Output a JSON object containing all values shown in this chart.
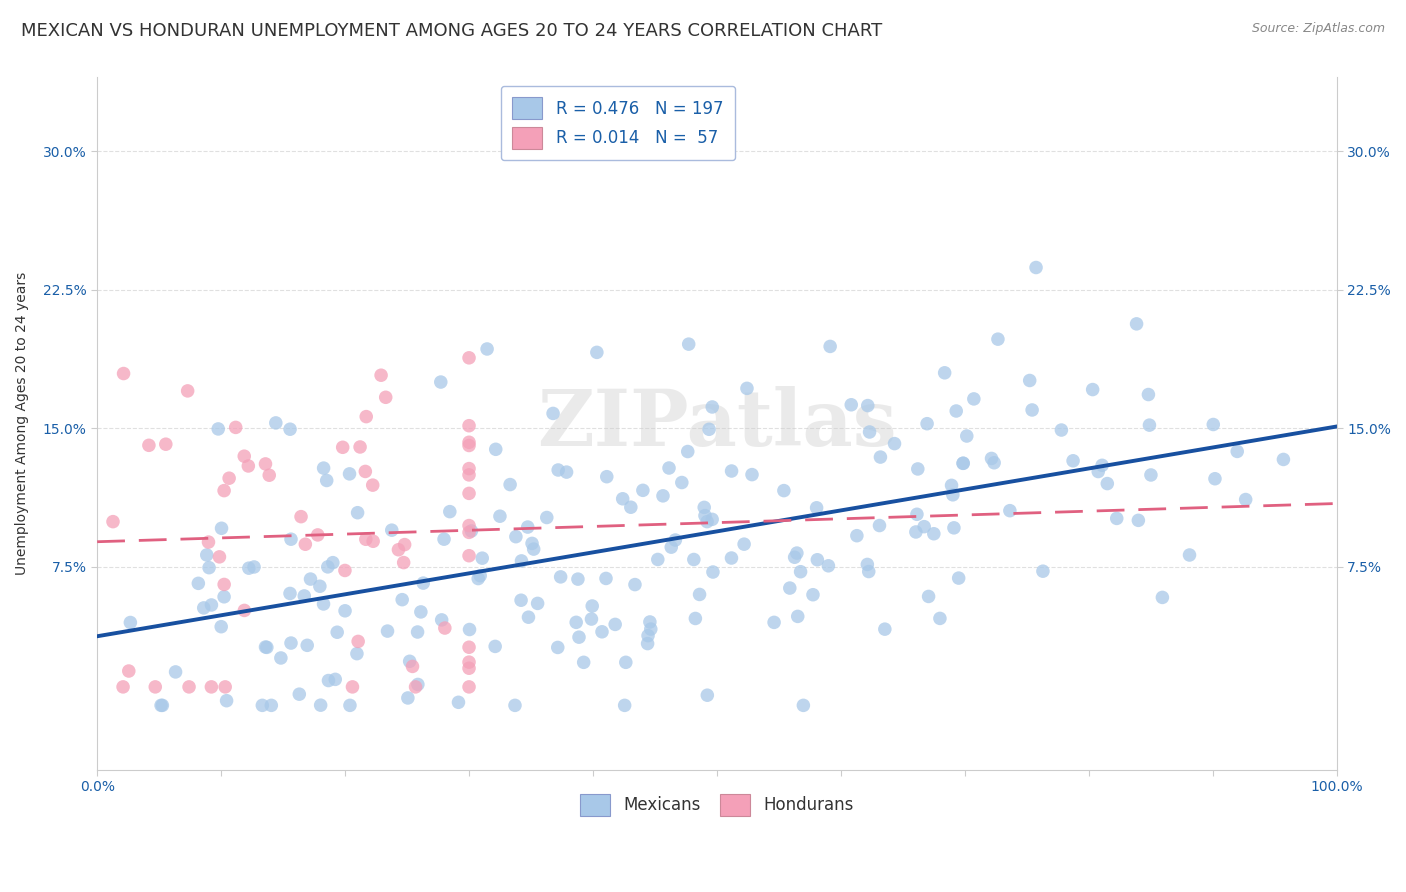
{
  "title": "MEXICAN VS HONDURAN UNEMPLOYMENT AMONG AGES 20 TO 24 YEARS CORRELATION CHART",
  "source": "Source: ZipAtlas.com",
  "ylabel": "Unemployment Among Ages 20 to 24 years",
  "xlim": [
    0,
    1.0
  ],
  "ylim": [
    -0.035,
    0.34
  ],
  "mexican_R": 0.476,
  "mexican_N": 197,
  "honduran_R": 0.014,
  "honduran_N": 57,
  "mexican_color": "#a8c8e8",
  "honduran_color": "#f4a0b8",
  "mexican_line_color": "#1850a0",
  "honduran_line_color": "#e06080",
  "watermark": "ZIPatlas",
  "background_color": "#ffffff",
  "title_fontsize": 13,
  "label_fontsize": 10,
  "tick_fontsize": 10,
  "seed": 12345,
  "mex_intercept": 0.046,
  "mex_slope": 0.1,
  "mex_noise": 0.048,
  "hon_intercept": 0.105,
  "hon_slope": 0.002,
  "hon_noise": 0.048
}
